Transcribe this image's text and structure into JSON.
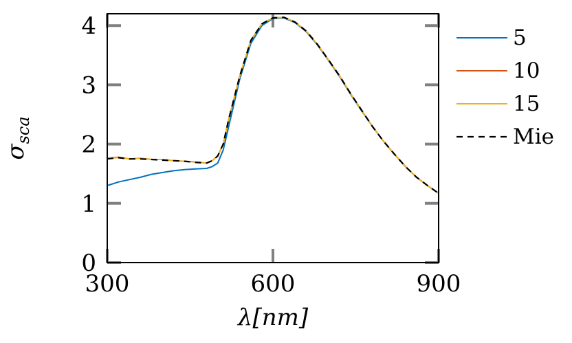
{
  "chart_data": {
    "type": "line",
    "title": "",
    "xlabel": "λ[nm]",
    "ylabel": "σ_sca",
    "ylabel_main": "σ",
    "ylabel_sub": "sca",
    "xlim": [
      300,
      900
    ],
    "ylim": [
      0,
      4.2
    ],
    "xticks": [
      300,
      600,
      900
    ],
    "yticks": [
      0,
      1,
      2,
      3,
      4
    ],
    "grid": false,
    "legend_position": "right-outside",
    "series": [
      {
        "name": "5",
        "color": "#0072BD",
        "dash": "solid",
        "x": [
          300,
          320,
          340,
          360,
          380,
          400,
          420,
          440,
          460,
          480,
          490,
          500,
          510,
          520,
          540,
          560,
          580,
          600,
          620,
          640,
          660,
          680,
          700,
          720,
          740,
          760,
          780,
          800,
          820,
          840,
          860,
          880,
          900
        ],
        "y": [
          1.3,
          1.36,
          1.4,
          1.44,
          1.49,
          1.52,
          1.55,
          1.57,
          1.58,
          1.59,
          1.62,
          1.68,
          1.9,
          2.3,
          3.1,
          3.7,
          4.0,
          4.12,
          4.13,
          4.05,
          3.9,
          3.68,
          3.42,
          3.15,
          2.85,
          2.57,
          2.3,
          2.05,
          1.83,
          1.62,
          1.44,
          1.3,
          1.17
        ]
      },
      {
        "name": "10",
        "color": "#D95319",
        "dash": "solid",
        "x": [
          300,
          320,
          340,
          360,
          380,
          400,
          420,
          440,
          460,
          480,
          490,
          500,
          510,
          520,
          540,
          560,
          580,
          600,
          620,
          640,
          660,
          680,
          700,
          720,
          740,
          760,
          780,
          800,
          820,
          840,
          860,
          880,
          900
        ],
        "y": [
          1.76,
          1.78,
          1.75,
          1.76,
          1.74,
          1.74,
          1.72,
          1.71,
          1.7,
          1.68,
          1.72,
          1.8,
          2.0,
          2.42,
          3.15,
          3.75,
          4.03,
          4.13,
          4.14,
          4.06,
          3.91,
          3.69,
          3.43,
          3.16,
          2.86,
          2.58,
          2.3,
          2.05,
          1.83,
          1.62,
          1.44,
          1.3,
          1.17
        ]
      },
      {
        "name": "15",
        "color": "#EDB120",
        "dash": "solid",
        "x": [
          300,
          320,
          340,
          360,
          380,
          400,
          420,
          440,
          460,
          480,
          490,
          500,
          510,
          520,
          540,
          560,
          580,
          600,
          620,
          640,
          660,
          680,
          700,
          720,
          740,
          760,
          780,
          800,
          820,
          840,
          860,
          880,
          900
        ],
        "y": [
          1.76,
          1.77,
          1.75,
          1.76,
          1.74,
          1.74,
          1.72,
          1.71,
          1.7,
          1.68,
          1.72,
          1.8,
          2.0,
          2.42,
          3.15,
          3.75,
          4.03,
          4.13,
          4.14,
          4.06,
          3.91,
          3.69,
          3.43,
          3.16,
          2.86,
          2.58,
          2.3,
          2.05,
          1.83,
          1.62,
          1.44,
          1.3,
          1.17
        ]
      },
      {
        "name": "Mie",
        "color": "#000000",
        "dash": "dashed",
        "x": [
          300,
          320,
          340,
          360,
          380,
          400,
          420,
          440,
          460,
          480,
          490,
          500,
          510,
          520,
          540,
          560,
          580,
          600,
          620,
          640,
          660,
          680,
          700,
          720,
          740,
          760,
          780,
          800,
          820,
          840,
          860,
          880,
          900
        ],
        "y": [
          1.75,
          1.77,
          1.75,
          1.75,
          1.74,
          1.73,
          1.72,
          1.71,
          1.69,
          1.68,
          1.72,
          1.8,
          2.0,
          2.42,
          3.15,
          3.75,
          4.03,
          4.13,
          4.14,
          4.06,
          3.91,
          3.69,
          3.43,
          3.16,
          2.86,
          2.58,
          2.3,
          2.05,
          1.83,
          1.62,
          1.44,
          1.3,
          1.17
        ]
      }
    ]
  }
}
